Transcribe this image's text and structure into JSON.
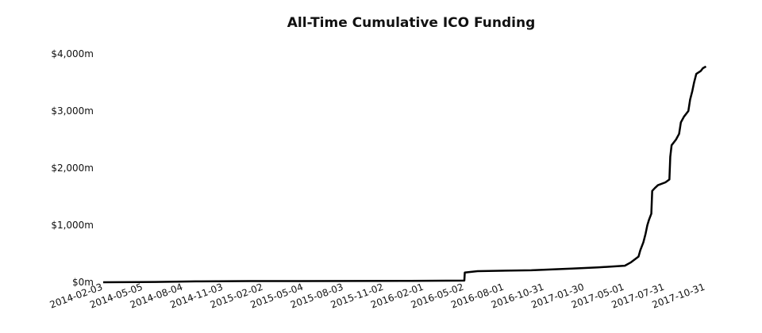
{
  "chart_data": {
    "type": "line",
    "title": "All-Time Cumulative ICO Funding",
    "xlabel": "",
    "ylabel": "",
    "x_range": [
      "2014-02-03",
      "2017-12-08"
    ],
    "ylim": [
      0,
      4000
    ],
    "y_ticks": [
      0,
      1000,
      2000,
      3000,
      4000
    ],
    "y_tick_labels": [
      "$0m",
      "$1,000m",
      "$2,000m",
      "$3,000m",
      "$4,000m"
    ],
    "x_ticks": [
      "2014-02-03",
      "2014-05-05",
      "2014-08-04",
      "2014-11-03",
      "2015-02-02",
      "2015-05-04",
      "2015-08-03",
      "2015-11-02",
      "2016-02-01",
      "2016-05-02",
      "2016-08-01",
      "2016-10-31",
      "2017-01-30",
      "2017-05-01",
      "2017-07-31",
      "2017-10-31"
    ],
    "grid": false,
    "legend": "none",
    "series": [
      {
        "color": "#000000",
        "points": [
          [
            "2014-02-03",
            0
          ],
          [
            "2014-06-01",
            5
          ],
          [
            "2014-09-01",
            15
          ],
          [
            "2015-01-01",
            20
          ],
          [
            "2016-01-01",
            25
          ],
          [
            "2016-05-02",
            30
          ],
          [
            "2016-05-03",
            170
          ],
          [
            "2016-06-01",
            195
          ],
          [
            "2016-10-01",
            210
          ],
          [
            "2017-01-01",
            240
          ],
          [
            "2017-03-01",
            260
          ],
          [
            "2017-05-01",
            290
          ],
          [
            "2017-05-15",
            350
          ],
          [
            "2017-06-01",
            450
          ],
          [
            "2017-06-05",
            560
          ],
          [
            "2017-06-12",
            700
          ],
          [
            "2017-06-17",
            850
          ],
          [
            "2017-06-21",
            1000
          ],
          [
            "2017-06-25",
            1100
          ],
          [
            "2017-06-30",
            1200
          ],
          [
            "2017-07-02",
            1600
          ],
          [
            "2017-07-08",
            1650
          ],
          [
            "2017-07-15",
            1700
          ],
          [
            "2017-08-01",
            1750
          ],
          [
            "2017-08-10",
            1800
          ],
          [
            "2017-08-12",
            2200
          ],
          [
            "2017-08-15",
            2400
          ],
          [
            "2017-08-25",
            2500
          ],
          [
            "2017-09-01",
            2600
          ],
          [
            "2017-09-05",
            2800
          ],
          [
            "2017-09-12",
            2900
          ],
          [
            "2017-09-22",
            3000
          ],
          [
            "2017-09-26",
            3200
          ],
          [
            "2017-10-01",
            3350
          ],
          [
            "2017-10-05",
            3500
          ],
          [
            "2017-10-10",
            3650
          ],
          [
            "2017-10-20",
            3700
          ],
          [
            "2017-10-25",
            3750
          ],
          [
            "2017-11-01",
            3780
          ]
        ]
      }
    ]
  }
}
